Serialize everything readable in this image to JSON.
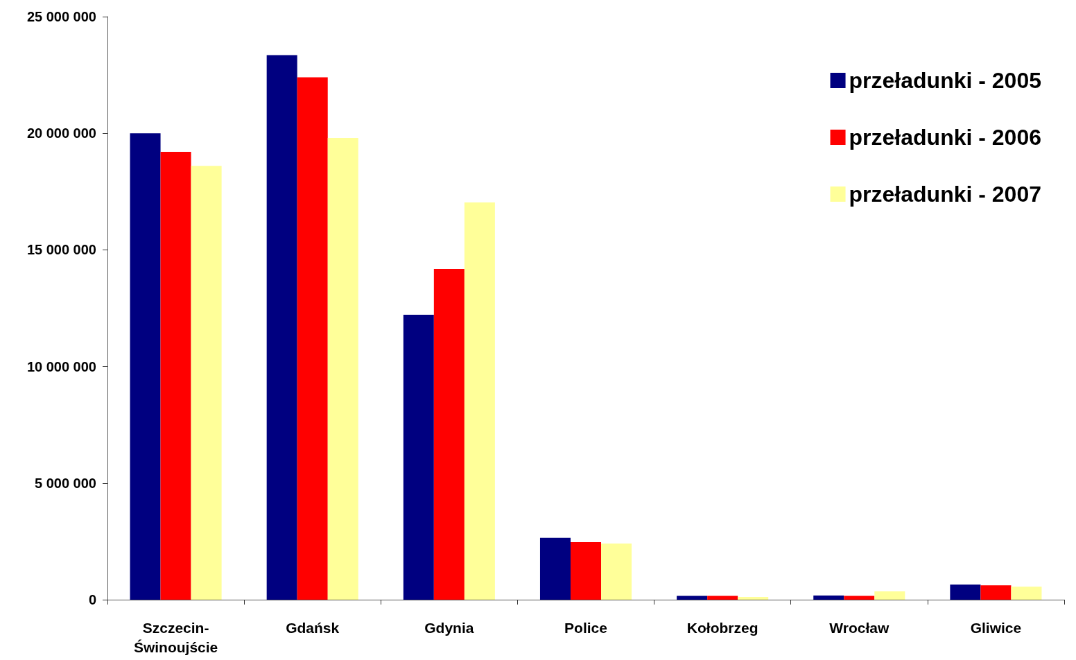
{
  "chart_data": {
    "type": "bar",
    "categories": [
      "Szczecin-Świnoujście",
      "Gdańsk",
      "Gdynia",
      "Police",
      "Kołobrzeg",
      "Wrocław",
      "Gliwice"
    ],
    "series": [
      {
        "name": "przeładunki - 2005",
        "color": "#000080",
        "values": [
          20000000,
          23350000,
          12220000,
          2650000,
          160000,
          180000,
          650000
        ]
      },
      {
        "name": "przeładunki - 2006",
        "color": "#ff0000",
        "values": [
          19200000,
          22400000,
          14180000,
          2470000,
          160000,
          160000,
          620000
        ]
      },
      {
        "name": "przeładunki - 2007",
        "color": "#ffff99",
        "values": [
          18600000,
          19800000,
          17030000,
          2410000,
          120000,
          360000,
          560000
        ]
      }
    ],
    "ylim": [
      0,
      25000000
    ],
    "yticks": [
      {
        "value": 0,
        "label": "0"
      },
      {
        "value": 5000000,
        "label": "5 000 000"
      },
      {
        "value": 10000000,
        "label": "10 000 000"
      },
      {
        "value": 15000000,
        "label": "15 000 000"
      },
      {
        "value": 20000000,
        "label": "20 000 000"
      },
      {
        "value": 25000000,
        "label": "25 000 000"
      }
    ],
    "grid": false,
    "legend": "top right"
  }
}
